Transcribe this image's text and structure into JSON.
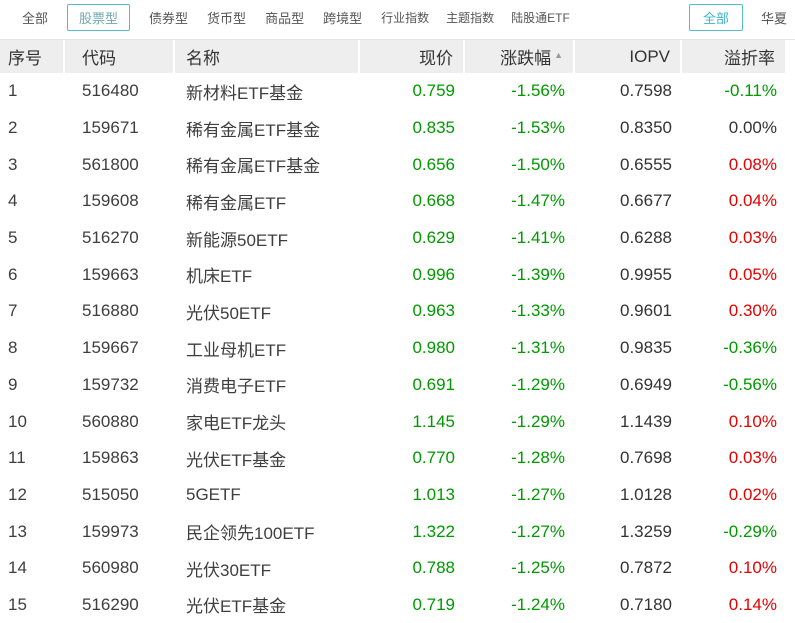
{
  "nav": {
    "left_tabs": [
      {
        "label": "全部",
        "selected": false
      },
      {
        "label": "股票型",
        "selected": true
      },
      {
        "label": "债券型",
        "selected": false
      },
      {
        "label": "货币型",
        "selected": false
      },
      {
        "label": "商品型",
        "selected": false
      },
      {
        "label": "跨境型",
        "selected": false
      },
      {
        "label": "行业指数",
        "selected": false
      },
      {
        "label": "主题指数",
        "selected": false
      },
      {
        "label": "陆股通ETF",
        "selected": false
      }
    ],
    "right_tabs": [
      {
        "label": "全部",
        "selected": true
      },
      {
        "label": "华夏",
        "selected": false
      }
    ]
  },
  "table": {
    "columns": [
      {
        "label": "序号",
        "align": "left"
      },
      {
        "label": "代码",
        "align": "left"
      },
      {
        "label": "名称",
        "align": "left"
      },
      {
        "label": "现价",
        "align": "right"
      },
      {
        "label": "涨跌幅",
        "align": "right",
        "sorted": "asc"
      },
      {
        "label": "IOPV",
        "align": "right"
      },
      {
        "label": "溢折率",
        "align": "right"
      }
    ],
    "sort_icon": "▲",
    "rows": [
      {
        "seq": "1",
        "code": "516480",
        "name": "新材料ETF基金",
        "price": "0.759",
        "price_color": "green",
        "change": "-1.56%",
        "change_color": "green",
        "iopv": "0.7598",
        "iopv_color": "dark",
        "premium": "-0.11%",
        "premium_color": "green"
      },
      {
        "seq": "2",
        "code": "159671",
        "name": "稀有金属ETF基金",
        "price": "0.835",
        "price_color": "green",
        "change": "-1.53%",
        "change_color": "green",
        "iopv": "0.8350",
        "iopv_color": "dark",
        "premium": "0.00%",
        "premium_color": "dark"
      },
      {
        "seq": "3",
        "code": "561800",
        "name": "稀有金属ETF基金",
        "price": "0.656",
        "price_color": "green",
        "change": "-1.50%",
        "change_color": "green",
        "iopv": "0.6555",
        "iopv_color": "dark",
        "premium": "0.08%",
        "premium_color": "red"
      },
      {
        "seq": "4",
        "code": "159608",
        "name": "稀有金属ETF",
        "price": "0.668",
        "price_color": "green",
        "change": "-1.47%",
        "change_color": "green",
        "iopv": "0.6677",
        "iopv_color": "dark",
        "premium": "0.04%",
        "premium_color": "red"
      },
      {
        "seq": "5",
        "code": "516270",
        "name": "新能源50ETF",
        "price": "0.629",
        "price_color": "green",
        "change": "-1.41%",
        "change_color": "green",
        "iopv": "0.6288",
        "iopv_color": "dark",
        "premium": "0.03%",
        "premium_color": "red"
      },
      {
        "seq": "6",
        "code": "159663",
        "name": "机床ETF",
        "price": "0.996",
        "price_color": "green",
        "change": "-1.39%",
        "change_color": "green",
        "iopv": "0.9955",
        "iopv_color": "dark",
        "premium": "0.05%",
        "premium_color": "red"
      },
      {
        "seq": "7",
        "code": "516880",
        "name": "光伏50ETF",
        "price": "0.963",
        "price_color": "green",
        "change": "-1.33%",
        "change_color": "green",
        "iopv": "0.9601",
        "iopv_color": "dark",
        "premium": "0.30%",
        "premium_color": "red"
      },
      {
        "seq": "8",
        "code": "159667",
        "name": "工业母机ETF",
        "price": "0.980",
        "price_color": "green",
        "change": "-1.31%",
        "change_color": "green",
        "iopv": "0.9835",
        "iopv_color": "dark",
        "premium": "-0.36%",
        "premium_color": "green"
      },
      {
        "seq": "9",
        "code": "159732",
        "name": "消费电子ETF",
        "price": "0.691",
        "price_color": "green",
        "change": "-1.29%",
        "change_color": "green",
        "iopv": "0.6949",
        "iopv_color": "dark",
        "premium": "-0.56%",
        "premium_color": "green"
      },
      {
        "seq": "10",
        "code": "560880",
        "name": "家电ETF龙头",
        "price": "1.145",
        "price_color": "green",
        "change": "-1.29%",
        "change_color": "green",
        "iopv": "1.1439",
        "iopv_color": "dark",
        "premium": "0.10%",
        "premium_color": "red"
      },
      {
        "seq": "11",
        "code": "159863",
        "name": "光伏ETF基金",
        "price": "0.770",
        "price_color": "green",
        "change": "-1.28%",
        "change_color": "green",
        "iopv": "0.7698",
        "iopv_color": "dark",
        "premium": "0.03%",
        "premium_color": "red"
      },
      {
        "seq": "12",
        "code": "515050",
        "name": "5GETF",
        "price": "1.013",
        "price_color": "green",
        "change": "-1.27%",
        "change_color": "green",
        "iopv": "1.0128",
        "iopv_color": "dark",
        "premium": "0.02%",
        "premium_color": "red"
      },
      {
        "seq": "13",
        "code": "159973",
        "name": "民企领先100ETF",
        "price": "1.322",
        "price_color": "green",
        "change": "-1.27%",
        "change_color": "green",
        "iopv": "1.3259",
        "iopv_color": "dark",
        "premium": "-0.29%",
        "premium_color": "green"
      },
      {
        "seq": "14",
        "code": "560980",
        "name": "光伏30ETF",
        "price": "0.788",
        "price_color": "green",
        "change": "-1.25%",
        "change_color": "green",
        "iopv": "0.7872",
        "iopv_color": "dark",
        "premium": "0.10%",
        "premium_color": "red"
      },
      {
        "seq": "15",
        "code": "516290",
        "name": "光伏ETF基金",
        "price": "0.719",
        "price_color": "green",
        "change": "-1.24%",
        "change_color": "green",
        "iopv": "0.7180",
        "iopv_color": "dark",
        "premium": "0.14%",
        "premium_color": "red"
      }
    ]
  },
  "colors": {
    "up_red": "#e60000",
    "down_green": "#009900",
    "neutral_dark": "#333333",
    "accent_teal": "#54bccd",
    "header_bg": "#eeeeee"
  }
}
